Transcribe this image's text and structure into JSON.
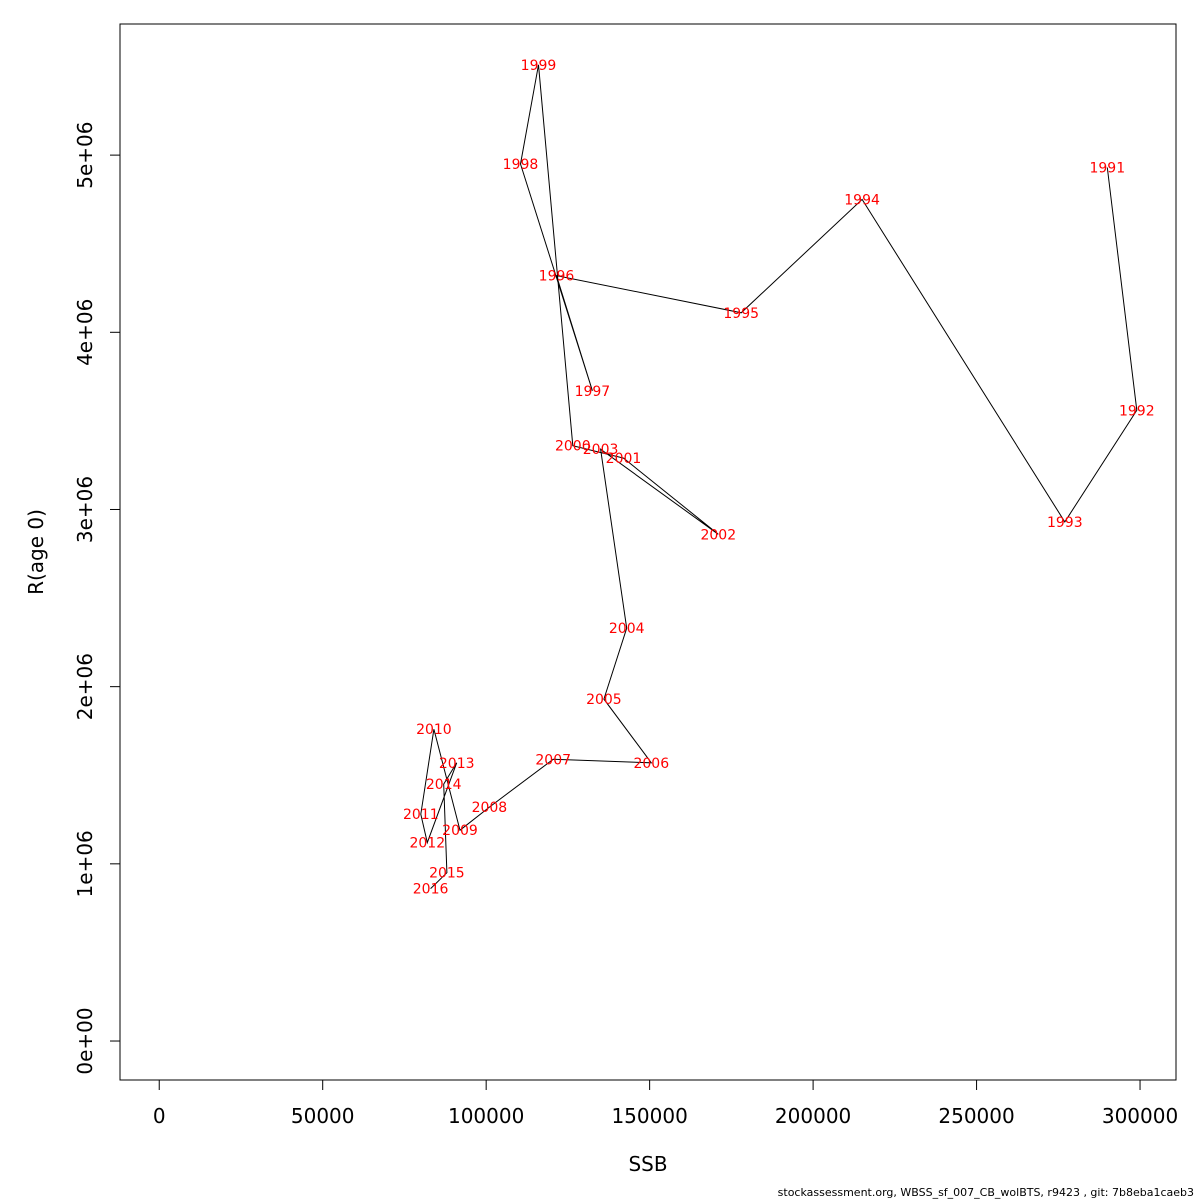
{
  "chart_data": {
    "type": "line",
    "xlabel": "SSB",
    "ylabel": "R(age 0)",
    "xlim": [
      -12000,
      311000
    ],
    "ylim": [
      -220000,
      5740000
    ],
    "xticks": [
      0,
      50000,
      100000,
      150000,
      200000,
      250000,
      300000
    ],
    "xtick_labels": [
      "0",
      "50000",
      "100000",
      "150000",
      "200000",
      "250000",
      "300000"
    ],
    "yticks": [
      0,
      1000000,
      2000000,
      3000000,
      4000000,
      5000000
    ],
    "ytick_labels": [
      "0e+00",
      "1e+06",
      "2e+06",
      "3e+06",
      "4e+06",
      "5e+06"
    ],
    "grid": false,
    "line_color": "#000000",
    "label_color": "#ff0000",
    "points": [
      {
        "year": "1991",
        "x": 290000,
        "y": 4930000
      },
      {
        "year": "1992",
        "x": 299000,
        "y": 3560000
      },
      {
        "year": "1993",
        "x": 277000,
        "y": 2930000
      },
      {
        "year": "1994",
        "x": 215000,
        "y": 4750000
      },
      {
        "year": "1995",
        "x": 178000,
        "y": 4110000
      },
      {
        "year": "1996",
        "x": 121500,
        "y": 4320000
      },
      {
        "year": "1997",
        "x": 132500,
        "y": 3670000
      },
      {
        "year": "1998",
        "x": 110500,
        "y": 4950000
      },
      {
        "year": "1999",
        "x": 116000,
        "y": 5510000
      },
      {
        "year": "2000",
        "x": 126500,
        "y": 3360000
      },
      {
        "year": "2001",
        "x": 142000,
        "y": 3290000
      },
      {
        "year": "2002",
        "x": 171000,
        "y": 2860000
      },
      {
        "year": "2003",
        "x": 135000,
        "y": 3340000
      },
      {
        "year": "2004",
        "x": 143000,
        "y": 2330000
      },
      {
        "year": "2005",
        "x": 136000,
        "y": 1930000
      },
      {
        "year": "2006",
        "x": 150500,
        "y": 1570000
      },
      {
        "year": "2007",
        "x": 120500,
        "y": 1590000
      },
      {
        "year": "2008",
        "x": 101000,
        "y": 1320000
      },
      {
        "year": "2009",
        "x": 92000,
        "y": 1190000
      },
      {
        "year": "2010",
        "x": 84000,
        "y": 1760000
      },
      {
        "year": "2011",
        "x": 80000,
        "y": 1280000
      },
      {
        "year": "2012",
        "x": 82000,
        "y": 1120000
      },
      {
        "year": "2013",
        "x": 91000,
        "y": 1570000
      },
      {
        "year": "2014",
        "x": 87000,
        "y": 1450000
      },
      {
        "year": "2015",
        "x": 88000,
        "y": 950000
      },
      {
        "year": "2016",
        "x": 83000,
        "y": 860000
      }
    ]
  },
  "footer": "stockassessment.org, WBSS_sf_007_CB_wolBTS, r9423 , git: 7b8eba1caeb3"
}
